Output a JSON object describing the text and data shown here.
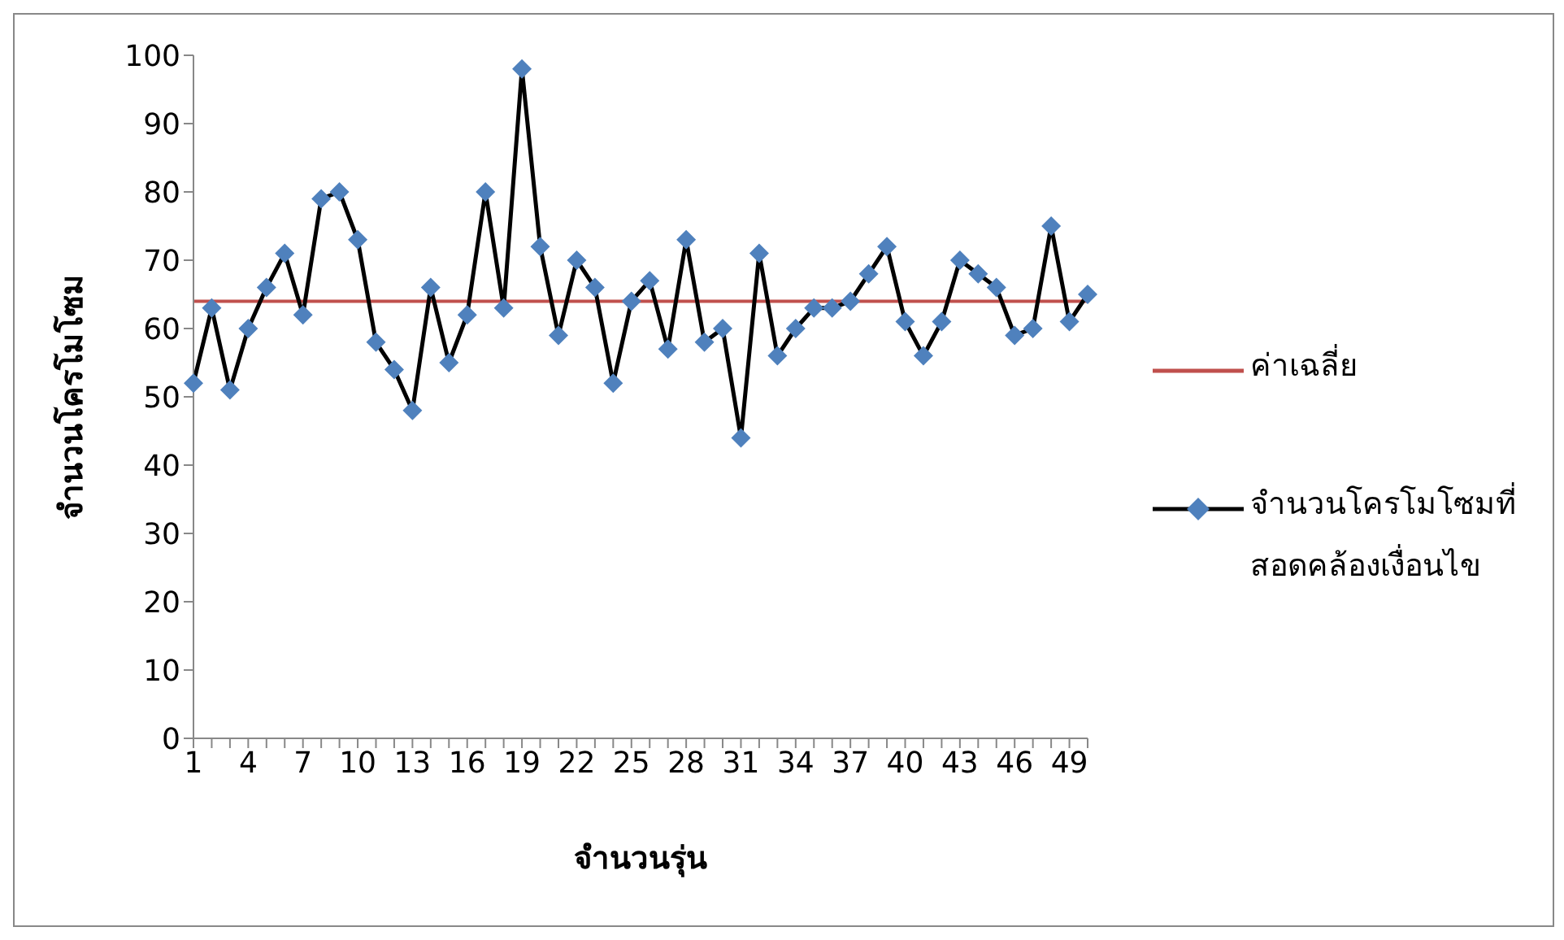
{
  "chart_data": {
    "type": "line",
    "xlabel": "จำนวนรุ่น",
    "ylabel": "จำนวนโครโมโซม",
    "categories": [
      "1",
      null,
      null,
      "4",
      null,
      null,
      "7",
      null,
      null,
      "10",
      null,
      null,
      "13",
      null,
      null,
      "16",
      null,
      null,
      "19",
      null,
      null,
      "22",
      null,
      null,
      "25",
      null,
      null,
      "28",
      null,
      null,
      "31",
      null,
      null,
      "34",
      null,
      null,
      "37",
      null,
      null,
      "40",
      null,
      null,
      "43",
      null,
      null,
      "46",
      null,
      null,
      "49",
      null
    ],
    "series": [
      {
        "name": "จำนวนโครโมโซมที่สอดคล้องเงื่อนไข",
        "color": "#4f81bd",
        "values": [
          52,
          63,
          51,
          60,
          66,
          71,
          62,
          79,
          80,
          73,
          58,
          54,
          48,
          66,
          55,
          62,
          80,
          63,
          98,
          72,
          59,
          70,
          66,
          52,
          64,
          67,
          57,
          73,
          58,
          60,
          44,
          71,
          56,
          60,
          63,
          63,
          64,
          68,
          72,
          61,
          56,
          61,
          70,
          68,
          66,
          59,
          60,
          75,
          61,
          65
        ]
      }
    ],
    "ref_lines": [
      {
        "axis": "y",
        "value": 64,
        "label": "ค่าเฉลี่ย",
        "color": "#c0504d"
      }
    ],
    "ylim": [
      0,
      100
    ],
    "yticks": [
      0,
      10,
      20,
      30,
      40,
      50,
      60,
      70,
      80,
      90,
      100
    ],
    "marker": "diamond",
    "legend": "right"
  }
}
